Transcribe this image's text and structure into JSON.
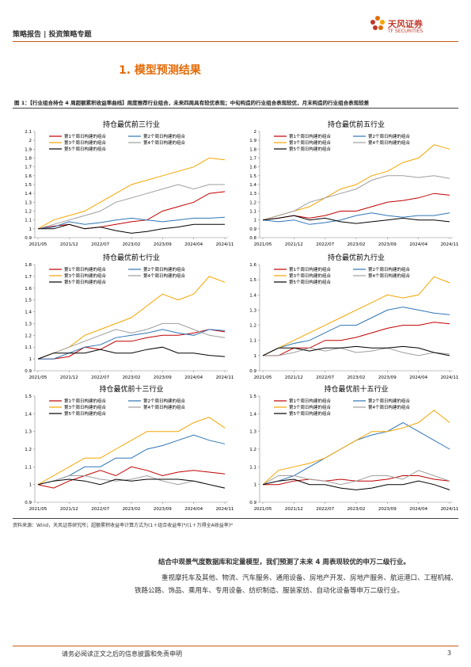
{
  "header": {
    "left": "策略报告 | 投资策略专题",
    "logo_cn": "天风证券",
    "logo_en": "TF SECURITIES"
  },
  "section_title": "1. 模型预测结果",
  "figure_caption": "图 1：【行业组合持仓 4 周超额累积收益率曲线】周度推荐行业组合，未来四周具有较优表现；中旬构造的行业组合表现较优，月末构造的行业组合表现较差",
  "chart_data": [
    {
      "type": "line",
      "title": "持仓最优前三行业",
      "categories": [
        "2021/05",
        null,
        "2021/12",
        null,
        "2022/07",
        null,
        "2023/02",
        null,
        "2023/09",
        null,
        "2024/04",
        null,
        "2024/11"
      ],
      "ylim": [
        0.9,
        2.1
      ],
      "yticks": [
        0.9,
        1,
        1.1,
        1.2,
        1.3,
        1.4,
        1.5,
        1.6,
        1.7,
        1.8,
        1.9,
        2,
        2.1
      ],
      "series": [
        {
          "name": "第1个周日构建的组合",
          "color": "#c00000",
          "values": [
            1,
            1.03,
            1.05,
            1.0,
            1.02,
            1.05,
            1.08,
            1.1,
            1.2,
            1.25,
            1.3,
            1.4,
            1.42
          ]
        },
        {
          "name": "第2个周日构建的组合",
          "color": "#2e75b6",
          "values": [
            1,
            1.02,
            1.08,
            1.05,
            1.07,
            1.1,
            1.12,
            1.1,
            1.08,
            1.1,
            1.12,
            1.12,
            1.13
          ]
        },
        {
          "name": "第3个周日构建的组合",
          "color": "#f5a500",
          "values": [
            1,
            1.1,
            1.15,
            1.2,
            1.3,
            1.4,
            1.5,
            1.55,
            1.6,
            1.65,
            1.7,
            1.8,
            1.78
          ]
        },
        {
          "name": "第4个周日构建的组合",
          "color": "#9e9e9e",
          "values": [
            1,
            1.05,
            1.1,
            1.15,
            1.2,
            1.3,
            1.35,
            1.4,
            1.45,
            1.5,
            1.45,
            1.5,
            1.5
          ]
        },
        {
          "name": "第5个周日构建的组合",
          "color": "#000000",
          "values": [
            1,
            1.0,
            1.05,
            1.0,
            1.02,
            0.98,
            0.95,
            0.97,
            1.0,
            1.02,
            1.05,
            1.05,
            1.05
          ]
        }
      ]
    },
    {
      "type": "line",
      "title": "持仓最优前五行业",
      "categories": [
        "2021/05",
        null,
        "2021/12",
        null,
        "2022/07",
        null,
        "2023/02",
        null,
        "2023/09",
        null,
        "2024/04",
        null,
        "2024/11"
      ],
      "ylim": [
        0.8,
        2
      ],
      "yticks": [
        0.8,
        0.9,
        1,
        1.1,
        1.2,
        1.3,
        1.4,
        1.5,
        1.6,
        1.7,
        1.8,
        1.9,
        2
      ],
      "series": [
        {
          "name": "第1个周日构建的组合",
          "color": "#c00000",
          "values": [
            1,
            1.02,
            1.05,
            1.02,
            1.05,
            1.1,
            1.1,
            1.15,
            1.2,
            1.22,
            1.25,
            1.3,
            1.28
          ]
        },
        {
          "name": "第2个周日构建的组合",
          "color": "#2e75b6",
          "values": [
            1,
            0.98,
            1.0,
            0.95,
            0.97,
            1.0,
            1.05,
            1.08,
            1.05,
            1.03,
            1.05,
            1.05,
            1.08
          ]
        },
        {
          "name": "第3个周日构建的组合",
          "color": "#f5a500",
          "values": [
            1,
            1.05,
            1.1,
            1.15,
            1.25,
            1.35,
            1.4,
            1.5,
            1.55,
            1.65,
            1.7,
            1.85,
            1.8
          ]
        },
        {
          "name": "第4个周日构建的组合",
          "color": "#9e9e9e",
          "values": [
            1,
            1.05,
            1.1,
            1.2,
            1.25,
            1.3,
            1.35,
            1.45,
            1.5,
            1.5,
            1.48,
            1.5,
            1.47
          ]
        },
        {
          "name": "第5个周日构建的组合",
          "color": "#000000",
          "values": [
            1,
            1.02,
            1.05,
            1.0,
            1.02,
            0.98,
            0.96,
            0.98,
            1.0,
            1.02,
            1.0,
            1.0,
            0.98
          ]
        }
      ]
    },
    {
      "type": "line",
      "title": "持仓最优前七行业",
      "categories": [
        "2021/05",
        null,
        "2021/12",
        null,
        "2022/07",
        null,
        "2023/02",
        null,
        "2023/09",
        null,
        "2024/04",
        null,
        "2024/11"
      ],
      "ylim": [
        0.9,
        1.8
      ],
      "yticks": [
        0.9,
        1,
        1.1,
        1.2,
        1.3,
        1.4,
        1.5,
        1.6,
        1.7,
        1.8
      ],
      "series": [
        {
          "name": "第1个周日构建的组合",
          "color": "#c00000",
          "values": [
            1,
            1.0,
            1.02,
            1.1,
            1.08,
            1.15,
            1.15,
            1.18,
            1.2,
            1.2,
            1.22,
            1.25,
            1.23
          ]
        },
        {
          "name": "第2个周日构建的组合",
          "color": "#2e75b6",
          "values": [
            1,
            1.0,
            1.05,
            1.1,
            1.12,
            1.18,
            1.2,
            1.22,
            1.25,
            1.22,
            1.2,
            1.25,
            1.24
          ]
        },
        {
          "name": "第3个周日构建的组合",
          "color": "#f5a500",
          "values": [
            1,
            1.05,
            1.1,
            1.2,
            1.25,
            1.3,
            1.35,
            1.45,
            1.55,
            1.5,
            1.55,
            1.7,
            1.65
          ]
        },
        {
          "name": "第4个周日构建的组合",
          "color": "#9e9e9e",
          "values": [
            1,
            1.05,
            1.1,
            1.15,
            1.2,
            1.25,
            1.22,
            1.25,
            1.3,
            1.3,
            1.25,
            1.2,
            1.18
          ]
        },
        {
          "name": "第5个周日构建的组合",
          "color": "#000000",
          "values": [
            1,
            1.05,
            1.05,
            1.05,
            1.08,
            1.05,
            1.05,
            1.08,
            1.1,
            1.05,
            1.05,
            1.03,
            1.02
          ]
        }
      ]
    },
    {
      "type": "line",
      "title": "持仓最优前九行业",
      "categories": [
        "2021/05",
        null,
        "2021/12",
        null,
        "2022/07",
        null,
        "2023/02",
        null,
        "2023/09",
        null,
        "2024/04",
        null,
        "2024/11"
      ],
      "ylim": [
        0.9,
        1.6
      ],
      "yticks": [
        0.9,
        1,
        1.1,
        1.2,
        1.3,
        1.4,
        1.5,
        1.6
      ],
      "series": [
        {
          "name": "第1个周日构建的组合",
          "color": "#c00000",
          "values": [
            1,
            1.0,
            1.05,
            1.05,
            1.1,
            1.1,
            1.12,
            1.15,
            1.18,
            1.2,
            1.2,
            1.22,
            1.21
          ]
        },
        {
          "name": "第2个周日构建的组合",
          "color": "#2e75b6",
          "values": [
            1,
            1.05,
            1.08,
            1.1,
            1.15,
            1.2,
            1.2,
            1.25,
            1.3,
            1.32,
            1.3,
            1.28,
            1.27
          ]
        },
        {
          "name": "第3个周日构建的组合",
          "color": "#f5a500",
          "values": [
            1,
            1.05,
            1.1,
            1.15,
            1.2,
            1.25,
            1.3,
            1.35,
            1.4,
            1.38,
            1.4,
            1.52,
            1.48
          ]
        },
        {
          "name": "第4个周日构建的组合",
          "color": "#9e9e9e",
          "values": [
            1,
            1.0,
            1.02,
            1.05,
            1.03,
            1.05,
            1.02,
            1.03,
            1.05,
            1.02,
            1.0,
            1.02,
            1.01
          ]
        },
        {
          "name": "第5个周日构建的组合",
          "color": "#000000",
          "values": [
            1,
            1.05,
            1.05,
            1.03,
            1.05,
            1.05,
            1.06,
            1.05,
            1.05,
            1.06,
            1.05,
            1.02,
            1.0
          ]
        }
      ]
    },
    {
      "type": "line",
      "title": "持仓最优前十三行业",
      "categories": [
        "2021/05",
        null,
        "2021/12",
        null,
        "2022/07",
        null,
        "2023/02",
        null,
        "2023/09",
        null,
        "2024/04",
        null,
        "2024/11"
      ],
      "ylim": [
        0.9,
        1.5
      ],
      "yticks": [
        0.9,
        1,
        1.1,
        1.2,
        1.3,
        1.4,
        1.5
      ],
      "series": [
        {
          "name": "第1个周日构建的组合",
          "color": "#c00000",
          "values": [
            1,
            0.98,
            1.02,
            1.05,
            1.08,
            1.05,
            1.1,
            1.08,
            1.05,
            1.07,
            1.08,
            1.07,
            1.06
          ]
        },
        {
          "name": "第2个周日构建的组合",
          "color": "#2e75b6",
          "values": [
            1,
            1.02,
            1.05,
            1.1,
            1.1,
            1.15,
            1.15,
            1.2,
            1.22,
            1.25,
            1.28,
            1.25,
            1.23
          ]
        },
        {
          "name": "第3个周日构建的组合",
          "color": "#f5a500",
          "values": [
            1,
            1.05,
            1.1,
            1.15,
            1.15,
            1.2,
            1.25,
            1.3,
            1.3,
            1.3,
            1.35,
            1.38,
            1.32
          ]
        },
        {
          "name": "第4个周日构建的组合",
          "color": "#9e9e9e",
          "values": [
            1,
            1.02,
            1.05,
            1.05,
            1.03,
            1.02,
            1.03,
            1.05,
            1.02,
            1.0,
            1.02,
            1.0,
            0.98
          ]
        },
        {
          "name": "第5个周日构建的组合",
          "color": "#000000",
          "values": [
            1,
            1.02,
            1.03,
            1.02,
            1.0,
            1.03,
            1.02,
            1.03,
            1.03,
            1.03,
            1.02,
            1.0,
            0.98
          ]
        }
      ]
    },
    {
      "type": "line",
      "title": "持仓最优前十五行业",
      "categories": [
        "2021/05",
        null,
        "2021/12",
        null,
        "2022/07",
        null,
        "2023/02",
        null,
        "2023/09",
        null,
        "2024/04",
        null,
        "2024/11"
      ],
      "ylim": [
        0.9,
        1.5
      ],
      "yticks": [
        0.9,
        1,
        1.1,
        1.2,
        1.3,
        1.4,
        1.5
      ],
      "series": [
        {
          "name": "第1个周日构建的组合",
          "color": "#c00000",
          "values": [
            1,
            1.0,
            1.02,
            1.03,
            1.02,
            1.03,
            1.02,
            1.02,
            1.03,
            1.05,
            1.05,
            1.03,
            1.02
          ]
        },
        {
          "name": "第2个周日构建的组合",
          "color": "#2e75b6",
          "values": [
            1,
            1.02,
            1.05,
            1.1,
            1.15,
            1.2,
            1.25,
            1.28,
            1.3,
            1.35,
            1.3,
            1.25,
            1.2
          ]
        },
        {
          "name": "第3个周日构建的组合",
          "color": "#f5a500",
          "values": [
            1,
            1.08,
            1.1,
            1.12,
            1.15,
            1.2,
            1.25,
            1.3,
            1.3,
            1.32,
            1.35,
            1.42,
            1.35
          ]
        },
        {
          "name": "第4个周日构建的组合",
          "color": "#9e9e9e",
          "values": [
            1,
            1.05,
            1.05,
            1.03,
            1.02,
            1.0,
            1.02,
            1.05,
            1.05,
            1.03,
            1.08,
            1.05,
            1.02
          ]
        },
        {
          "name": "第5个周日构建的组合",
          "color": "#000000",
          "values": [
            1,
            1.02,
            1.03,
            1.0,
            1.0,
            0.98,
            0.97,
            0.98,
            1.0,
            1.0,
            1.02,
            1.0,
            0.97
          ]
        }
      ]
    }
  ],
  "source": "资料来源：Wind，天风证券研究所；超额累积收益率计算方式为(1＋组合收益率)ᴺ/(1＋万得全A收益率)ᴺ",
  "body": {
    "lead": "结合中观景气度数据库和定量模型，我们预测了未来 4 周表现较优的申万二级行业。",
    "text": "重视摩托车及其他、物流、汽车服务、通用设备、房地产开发、房地产服务、航运港口、工程机械、铁路公路、饰品、乘用车、专用设备、纺织制造、服装家纺、自动化设备等申万二级行业。"
  },
  "footer": {
    "note": "请务必阅读正文之后的信息披露和免责申明",
    "page": "3"
  }
}
